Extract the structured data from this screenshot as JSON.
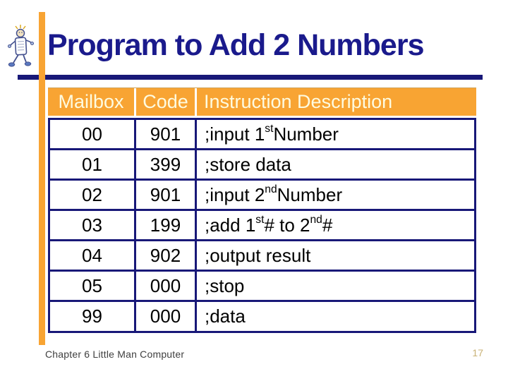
{
  "slide": {
    "title": "Program to Add 2 Numbers",
    "footer": "Chapter 6 Little Man Computer",
    "page_number": "17"
  },
  "colors": {
    "accent_orange": "#F8A433",
    "border_navy": "#181878",
    "title_navy": "#1A1A8C",
    "header_text_cream": "#FEFBE0",
    "footer_gray": "#3F3F3F",
    "page_number_gold": "#C9B276"
  },
  "icons": {
    "little_man": "little-man-icon"
  },
  "table": {
    "headers": [
      "Mailbox",
      "Code",
      "Instruction Description"
    ],
    "rows": [
      {
        "mailbox": "00",
        "code": "901",
        "description": [
          ";input 1",
          {
            "sup": "st"
          },
          " Number"
        ]
      },
      {
        "mailbox": "01",
        "code": "399",
        "description": [
          ";store data"
        ]
      },
      {
        "mailbox": "02",
        "code": "901",
        "description": [
          ";input 2",
          {
            "sup": "nd"
          },
          " Number"
        ]
      },
      {
        "mailbox": "03",
        "code": "199",
        "description": [
          ";add 1",
          {
            "sup": "st"
          },
          " # to 2",
          {
            "sup": "nd"
          },
          " #"
        ]
      },
      {
        "mailbox": "04",
        "code": "902",
        "description": [
          ";output result"
        ]
      },
      {
        "mailbox": "05",
        "code": "000",
        "description": [
          ";stop"
        ]
      },
      {
        "mailbox": "99",
        "code": "000",
        "description": [
          ";data"
        ]
      }
    ]
  }
}
